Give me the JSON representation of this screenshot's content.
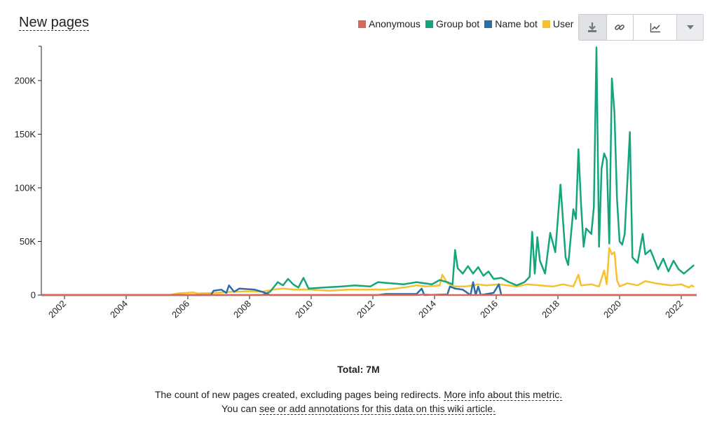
{
  "title": "New pages",
  "legend": [
    {
      "name": "Anonymous",
      "color": "#d9655b"
    },
    {
      "name": "Group bot",
      "color": "#14a57c"
    },
    {
      "name": "Name bot",
      "color": "#2c6fa6"
    },
    {
      "name": "User",
      "color": "#f6c02f"
    }
  ],
  "toolbar": {
    "download_icon": "download-icon",
    "link_icon": "link-icon",
    "chart_icon": "line-chart-icon",
    "dropdown_icon": "chevron-down-icon"
  },
  "total": "Total: 7M",
  "description": {
    "text": "The count of new pages created, excluding pages being redirects.",
    "link": "More info about this metric.",
    "line2_prefix": "You can",
    "line2_link": "see or add annotations for this data on this wiki article."
  },
  "chart_data": {
    "type": "line",
    "x_start": "2001-01",
    "x_step": "month",
    "xlim": [
      "2001-04",
      "2022-07"
    ],
    "ylim": [
      0,
      232000
    ],
    "x_ticks": [
      "2002",
      "2004",
      "2006",
      "2008",
      "2010",
      "2012",
      "2014",
      "2016",
      "2018",
      "2020",
      "2022"
    ],
    "y_ticks": [
      0,
      50000,
      100000,
      150000,
      200000
    ],
    "y_tick_labels": [
      "0",
      "50K",
      "100K",
      "150K",
      "200K"
    ],
    "grid": false,
    "legend_position": "top-right",
    "series": [
      {
        "name": "Anonymous",
        "color": "#d9655b",
        "points": [
          [
            "2001-04",
            0
          ],
          [
            "2013-06",
            0
          ],
          [
            "2013-09",
            500
          ],
          [
            "2014-01",
            0
          ],
          [
            "2022-07",
            0
          ]
        ]
      },
      {
        "name": "Group bot",
        "color": "#14a57c",
        "points": [
          [
            "2001-04",
            0
          ],
          [
            "2008-06",
            0
          ],
          [
            "2008-09",
            3000
          ],
          [
            "2008-12",
            12000
          ],
          [
            "2009-02",
            9000
          ],
          [
            "2009-04",
            15000
          ],
          [
            "2009-06",
            10000
          ],
          [
            "2009-08",
            7000
          ],
          [
            "2009-10",
            16000
          ],
          [
            "2009-12",
            6000
          ],
          [
            "2010-06",
            7000
          ],
          [
            "2011-01",
            8000
          ],
          [
            "2011-06",
            9000
          ],
          [
            "2011-12",
            8000
          ],
          [
            "2012-03",
            12000
          ],
          [
            "2012-08",
            11000
          ],
          [
            "2013-01",
            10000
          ],
          [
            "2013-06",
            12000
          ],
          [
            "2013-12",
            10000
          ],
          [
            "2014-03",
            14000
          ],
          [
            "2014-06",
            12000
          ],
          [
            "2014-08",
            10000
          ],
          [
            "2014-09",
            42000
          ],
          [
            "2014-10",
            25000
          ],
          [
            "2014-12",
            20000
          ],
          [
            "2015-02",
            27000
          ],
          [
            "2015-04",
            20000
          ],
          [
            "2015-06",
            26000
          ],
          [
            "2015-08",
            18000
          ],
          [
            "2015-10",
            22000
          ],
          [
            "2015-12",
            15000
          ],
          [
            "2016-03",
            16000
          ],
          [
            "2016-06",
            12000
          ],
          [
            "2016-09",
            9000
          ],
          [
            "2016-12",
            12000
          ],
          [
            "2017-02",
            17000
          ],
          [
            "2017-03",
            59000
          ],
          [
            "2017-04",
            20000
          ],
          [
            "2017-05",
            54000
          ],
          [
            "2017-06",
            32000
          ],
          [
            "2017-08",
            20000
          ],
          [
            "2017-10",
            58000
          ],
          [
            "2017-12",
            40000
          ],
          [
            "2018-02",
            103000
          ],
          [
            "2018-04",
            35000
          ],
          [
            "2018-05",
            28000
          ],
          [
            "2018-07",
            80000
          ],
          [
            "2018-08",
            71000
          ],
          [
            "2018-09",
            136000
          ],
          [
            "2018-10",
            85000
          ],
          [
            "2018-11",
            45000
          ],
          [
            "2018-12",
            62000
          ],
          [
            "2019-02",
            57000
          ],
          [
            "2019-03",
            82000
          ],
          [
            "2019-04",
            231000
          ],
          [
            "2019-05",
            45000
          ],
          [
            "2019-06",
            118000
          ],
          [
            "2019-07",
            132000
          ],
          [
            "2019-08",
            126000
          ],
          [
            "2019-09",
            48000
          ],
          [
            "2019-10",
            202000
          ],
          [
            "2019-11",
            170000
          ],
          [
            "2019-12",
            90000
          ],
          [
            "2020-01",
            50000
          ],
          [
            "2020-02",
            47000
          ],
          [
            "2020-03",
            57000
          ],
          [
            "2020-05",
            152000
          ],
          [
            "2020-06",
            35000
          ],
          [
            "2020-08",
            30000
          ],
          [
            "2020-10",
            57000
          ],
          [
            "2020-11",
            38000
          ],
          [
            "2021-01",
            42000
          ],
          [
            "2021-04",
            24000
          ],
          [
            "2021-06",
            34000
          ],
          [
            "2021-08",
            22000
          ],
          [
            "2021-10",
            32000
          ],
          [
            "2021-12",
            24000
          ],
          [
            "2022-02",
            20000
          ],
          [
            "2022-04",
            24000
          ],
          [
            "2022-06",
            28000
          ]
        ]
      },
      {
        "name": "Name bot",
        "color": "#2c6fa6",
        "points": [
          [
            "2001-04",
            0
          ],
          [
            "2006-10",
            0
          ],
          [
            "2006-11",
            4000
          ],
          [
            "2007-02",
            5000
          ],
          [
            "2007-04",
            2000
          ],
          [
            "2007-05",
            9000
          ],
          [
            "2007-07",
            3000
          ],
          [
            "2007-09",
            6000
          ],
          [
            "2008-03",
            5000
          ],
          [
            "2008-06",
            3000
          ],
          [
            "2008-09",
            0
          ],
          [
            "2012-03",
            0
          ],
          [
            "2012-06",
            1000
          ],
          [
            "2013-06",
            1000
          ],
          [
            "2013-08",
            6000
          ],
          [
            "2013-09",
            0
          ],
          [
            "2014-06",
            500
          ],
          [
            "2014-07",
            8000
          ],
          [
            "2014-09",
            6000
          ],
          [
            "2014-12",
            5000
          ],
          [
            "2015-03",
            0
          ],
          [
            "2015-04",
            12000
          ],
          [
            "2015-05",
            0
          ],
          [
            "2015-06",
            8000
          ],
          [
            "2015-07",
            0
          ],
          [
            "2015-12",
            2000
          ],
          [
            "2016-02",
            10000
          ],
          [
            "2016-03",
            0
          ],
          [
            "2022-07",
            0
          ]
        ]
      },
      {
        "name": "User",
        "color": "#f6c02f",
        "points": [
          [
            "2001-04",
            0
          ],
          [
            "2005-06",
            0
          ],
          [
            "2005-09",
            1500
          ],
          [
            "2006-03",
            2500
          ],
          [
            "2006-05",
            1500
          ],
          [
            "2006-12",
            2000
          ],
          [
            "2007-06",
            3000
          ],
          [
            "2008-01",
            3500
          ],
          [
            "2008-06",
            3000
          ],
          [
            "2008-10",
            5000
          ],
          [
            "2009-02",
            6000
          ],
          [
            "2009-06",
            5000
          ],
          [
            "2010-01",
            5000
          ],
          [
            "2010-08",
            4000
          ],
          [
            "2011-03",
            5000
          ],
          [
            "2011-09",
            5000
          ],
          [
            "2012-06",
            5000
          ],
          [
            "2013-01",
            7000
          ],
          [
            "2013-06",
            9000
          ],
          [
            "2013-10",
            8000
          ],
          [
            "2014-03",
            9000
          ],
          [
            "2014-04",
            19000
          ],
          [
            "2014-06",
            11000
          ],
          [
            "2014-09",
            8000
          ],
          [
            "2015-01",
            8000
          ],
          [
            "2015-06",
            10000
          ],
          [
            "2015-09",
            9000
          ],
          [
            "2016-02",
            10000
          ],
          [
            "2016-09",
            8000
          ],
          [
            "2017-01",
            10000
          ],
          [
            "2017-06",
            9000
          ],
          [
            "2017-11",
            8000
          ],
          [
            "2018-03",
            10000
          ],
          [
            "2018-07",
            8000
          ],
          [
            "2018-09",
            19000
          ],
          [
            "2018-10",
            9000
          ],
          [
            "2019-02",
            10000
          ],
          [
            "2019-05",
            8000
          ],
          [
            "2019-07",
            23000
          ],
          [
            "2019-08",
            10000
          ],
          [
            "2019-09",
            44000
          ],
          [
            "2019-10",
            38000
          ],
          [
            "2019-11",
            40000
          ],
          [
            "2019-12",
            14000
          ],
          [
            "2020-01",
            8000
          ],
          [
            "2020-04",
            11000
          ],
          [
            "2020-08",
            9000
          ],
          [
            "2020-11",
            13000
          ],
          [
            "2021-03",
            11000
          ],
          [
            "2021-09",
            9000
          ],
          [
            "2022-01",
            10000
          ],
          [
            "2022-04",
            7000
          ],
          [
            "2022-05",
            9000
          ],
          [
            "2022-06",
            7500
          ]
        ]
      }
    ]
  }
}
